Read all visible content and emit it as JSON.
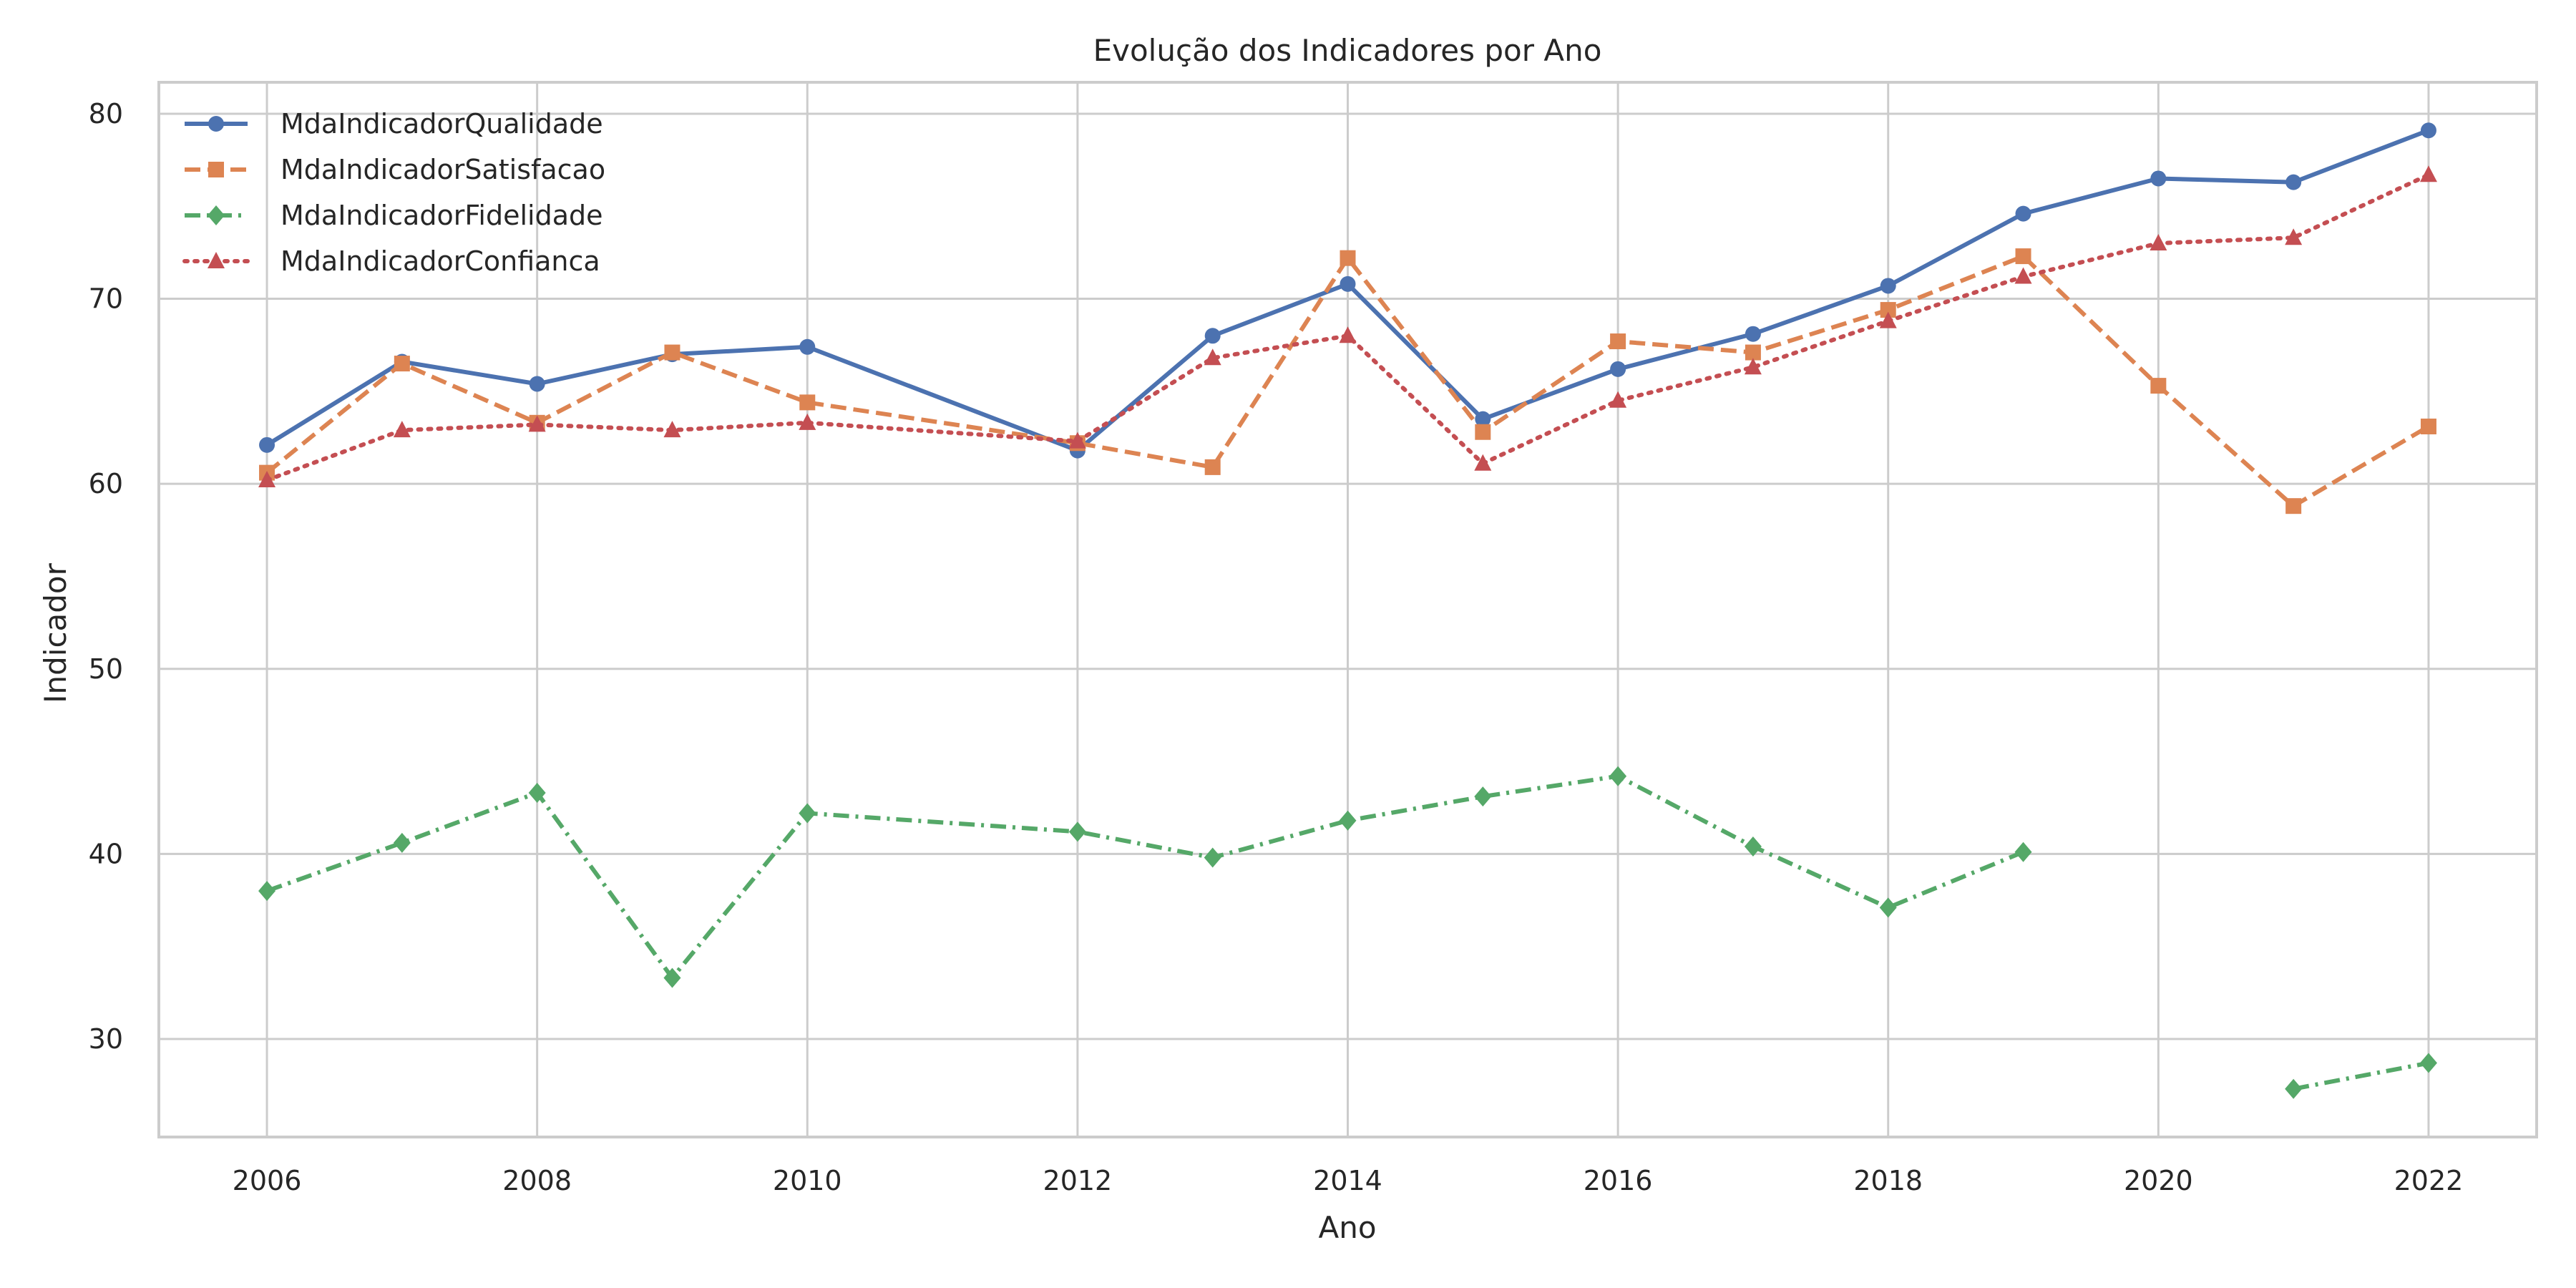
{
  "chart_data": {
    "type": "line",
    "title": "Evolução dos Indicadores por Ano",
    "xlabel": "Ano",
    "ylabel": "Indicador",
    "xlim": [
      2005.2,
      2022.8
    ],
    "ylim": [
      24.7,
      81.7
    ],
    "x_ticks": [
      2006,
      2008,
      2010,
      2012,
      2014,
      2016,
      2018,
      2020,
      2022
    ],
    "y_ticks": [
      30,
      40,
      50,
      60,
      70,
      80
    ],
    "grid": true,
    "legend_position": "top-left",
    "series": [
      {
        "name": "MdaIndicadorQualidade",
        "color": "#4c72b0",
        "line_style": "solid",
        "marker": "circle",
        "points": [
          [
            2006,
            62.1
          ],
          [
            2007,
            66.6
          ],
          [
            2008,
            65.4
          ],
          [
            2009,
            67.0
          ],
          [
            2010,
            67.4
          ],
          [
            2012,
            61.8
          ],
          [
            2013,
            68.0
          ],
          [
            2014,
            70.8
          ],
          [
            2015,
            63.5
          ],
          [
            2016,
            66.2
          ],
          [
            2017,
            68.1
          ],
          [
            2018,
            70.7
          ],
          [
            2019,
            74.6
          ],
          [
            2020,
            76.5
          ],
          [
            2021,
            76.3
          ],
          [
            2022,
            79.1
          ]
        ]
      },
      {
        "name": "MdaIndicadorSatisfacao",
        "color": "#dd8452",
        "line_style": "dashed",
        "marker": "square",
        "points": [
          [
            2006,
            60.6
          ],
          [
            2007,
            66.5
          ],
          [
            2008,
            63.3
          ],
          [
            2009,
            67.1
          ],
          [
            2010,
            64.4
          ],
          [
            2012,
            62.2
          ],
          [
            2013,
            60.9
          ],
          [
            2014,
            72.2
          ],
          [
            2015,
            62.8
          ],
          [
            2016,
            67.7
          ],
          [
            2017,
            67.1
          ],
          [
            2018,
            69.4
          ],
          [
            2019,
            72.3
          ],
          [
            2020,
            65.3
          ],
          [
            2021,
            58.8
          ],
          [
            2022,
            63.1
          ]
        ]
      },
      {
        "name": "MdaIndicadorFidelidade",
        "color": "#55a868",
        "line_style": "dashdot",
        "marker": "diamond",
        "points": [
          [
            2006,
            38.0
          ],
          [
            2007,
            40.6
          ],
          [
            2008,
            43.3
          ],
          [
            2009,
            33.3
          ],
          [
            2010,
            42.2
          ],
          [
            2012,
            41.2
          ],
          [
            2013,
            39.8
          ],
          [
            2014,
            41.8
          ],
          [
            2015,
            43.1
          ],
          [
            2016,
            44.2
          ],
          [
            2017,
            40.4
          ],
          [
            2018,
            37.1
          ],
          [
            2019,
            40.1
          ],
          [
            2020,
            null
          ],
          [
            2021,
            27.3
          ],
          [
            2022,
            28.7
          ]
        ]
      },
      {
        "name": "MdaIndicadorConfianca",
        "color": "#c44e52",
        "line_style": "dotted",
        "marker": "triangle",
        "points": [
          [
            2006,
            60.2
          ],
          [
            2007,
            62.9
          ],
          [
            2008,
            63.2
          ],
          [
            2009,
            62.9
          ],
          [
            2010,
            63.3
          ],
          [
            2012,
            62.3
          ],
          [
            2013,
            66.8
          ],
          [
            2014,
            68.0
          ],
          [
            2015,
            61.1
          ],
          [
            2016,
            64.5
          ],
          [
            2017,
            66.3
          ],
          [
            2018,
            68.8
          ],
          [
            2019,
            71.2
          ],
          [
            2020,
            73.0
          ],
          [
            2021,
            73.3
          ],
          [
            2022,
            76.7
          ]
        ]
      }
    ]
  }
}
